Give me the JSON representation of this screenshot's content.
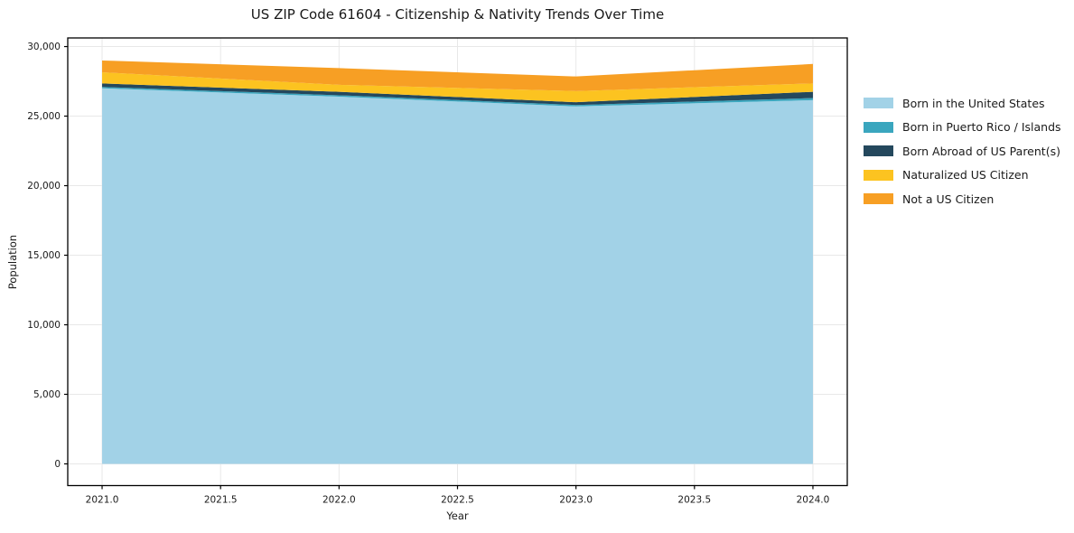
{
  "chart_data": {
    "type": "area",
    "stacked": true,
    "title": "US ZIP Code 61604 - Citizenship & Nativity Trends Over Time",
    "xlabel": "Year",
    "ylabel": "Population",
    "x": [
      2021,
      2022,
      2023,
      2024
    ],
    "series": [
      {
        "name": "Born in the United States",
        "color": "#A2D2E7",
        "values": [
          27000,
          26400,
          25700,
          26150
        ]
      },
      {
        "name": "Born in Puerto Rico / Islands",
        "color": "#3AA6BE",
        "values": [
          100,
          100,
          100,
          150
        ]
      },
      {
        "name": "Born Abroad of US Parent(s)",
        "color": "#24485D",
        "values": [
          250,
          250,
          200,
          450
        ]
      },
      {
        "name": "Naturalized US Citizen",
        "color": "#FCC320",
        "values": [
          800,
          500,
          800,
          600
        ]
      },
      {
        "name": "Not a US Citizen",
        "color": "#F79F24",
        "values": [
          850,
          1200,
          1050,
          1400
        ]
      }
    ],
    "totals": [
      29000,
      28450,
      27850,
      28750
    ],
    "xlim": [
      2020.855,
      2024.145
    ],
    "ylim": [
      -1560,
      30620
    ],
    "xticks": [
      2021.0,
      2021.5,
      2022.0,
      2022.5,
      2023.0,
      2023.5,
      2024.0
    ],
    "xtick_labels": [
      "2021.0",
      "2021.5",
      "2022.0",
      "2022.5",
      "2023.0",
      "2023.5",
      "2024.0"
    ],
    "yticks": [
      0,
      5000,
      10000,
      15000,
      20000,
      25000,
      30000
    ],
    "ytick_labels": [
      "0",
      "5,000",
      "10,000",
      "15,000",
      "20,000",
      "25,000",
      "30,000"
    ],
    "grid": true,
    "grid_color": "#e8e8e8",
    "spine_color": "#000000",
    "legend_position": "outside-right"
  }
}
